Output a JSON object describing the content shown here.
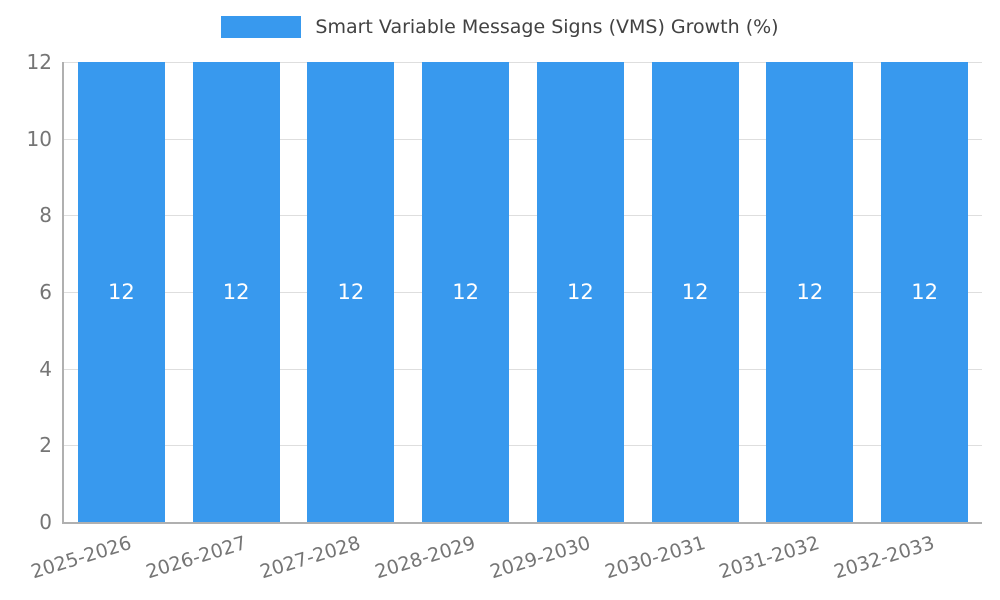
{
  "legend": {
    "label": "Smart Variable Message Signs (VMS) Growth (%)"
  },
  "colors": {
    "bar": "#3899ee",
    "grid": "#dedede",
    "axis": "#b0b0b0",
    "tick_text": "#757575",
    "title_text": "#424242",
    "value_label_text": "#ffffff"
  },
  "chart_data": {
    "type": "bar",
    "title": "Smart Variable Message Signs (VMS) Growth (%)",
    "categories": [
      "2025-2026",
      "2026-2027",
      "2027-2028",
      "2028-2029",
      "2029-2030",
      "2030-2031",
      "2031-2032",
      "2032-2033"
    ],
    "values": [
      12,
      12,
      12,
      12,
      12,
      12,
      12,
      12
    ],
    "xlabel": "",
    "ylabel": "",
    "ylim": [
      0,
      12
    ],
    "yticks": [
      0,
      2,
      4,
      6,
      8,
      10,
      12
    ],
    "grid": true,
    "legend_position": "top",
    "bar_value_labels": true
  }
}
